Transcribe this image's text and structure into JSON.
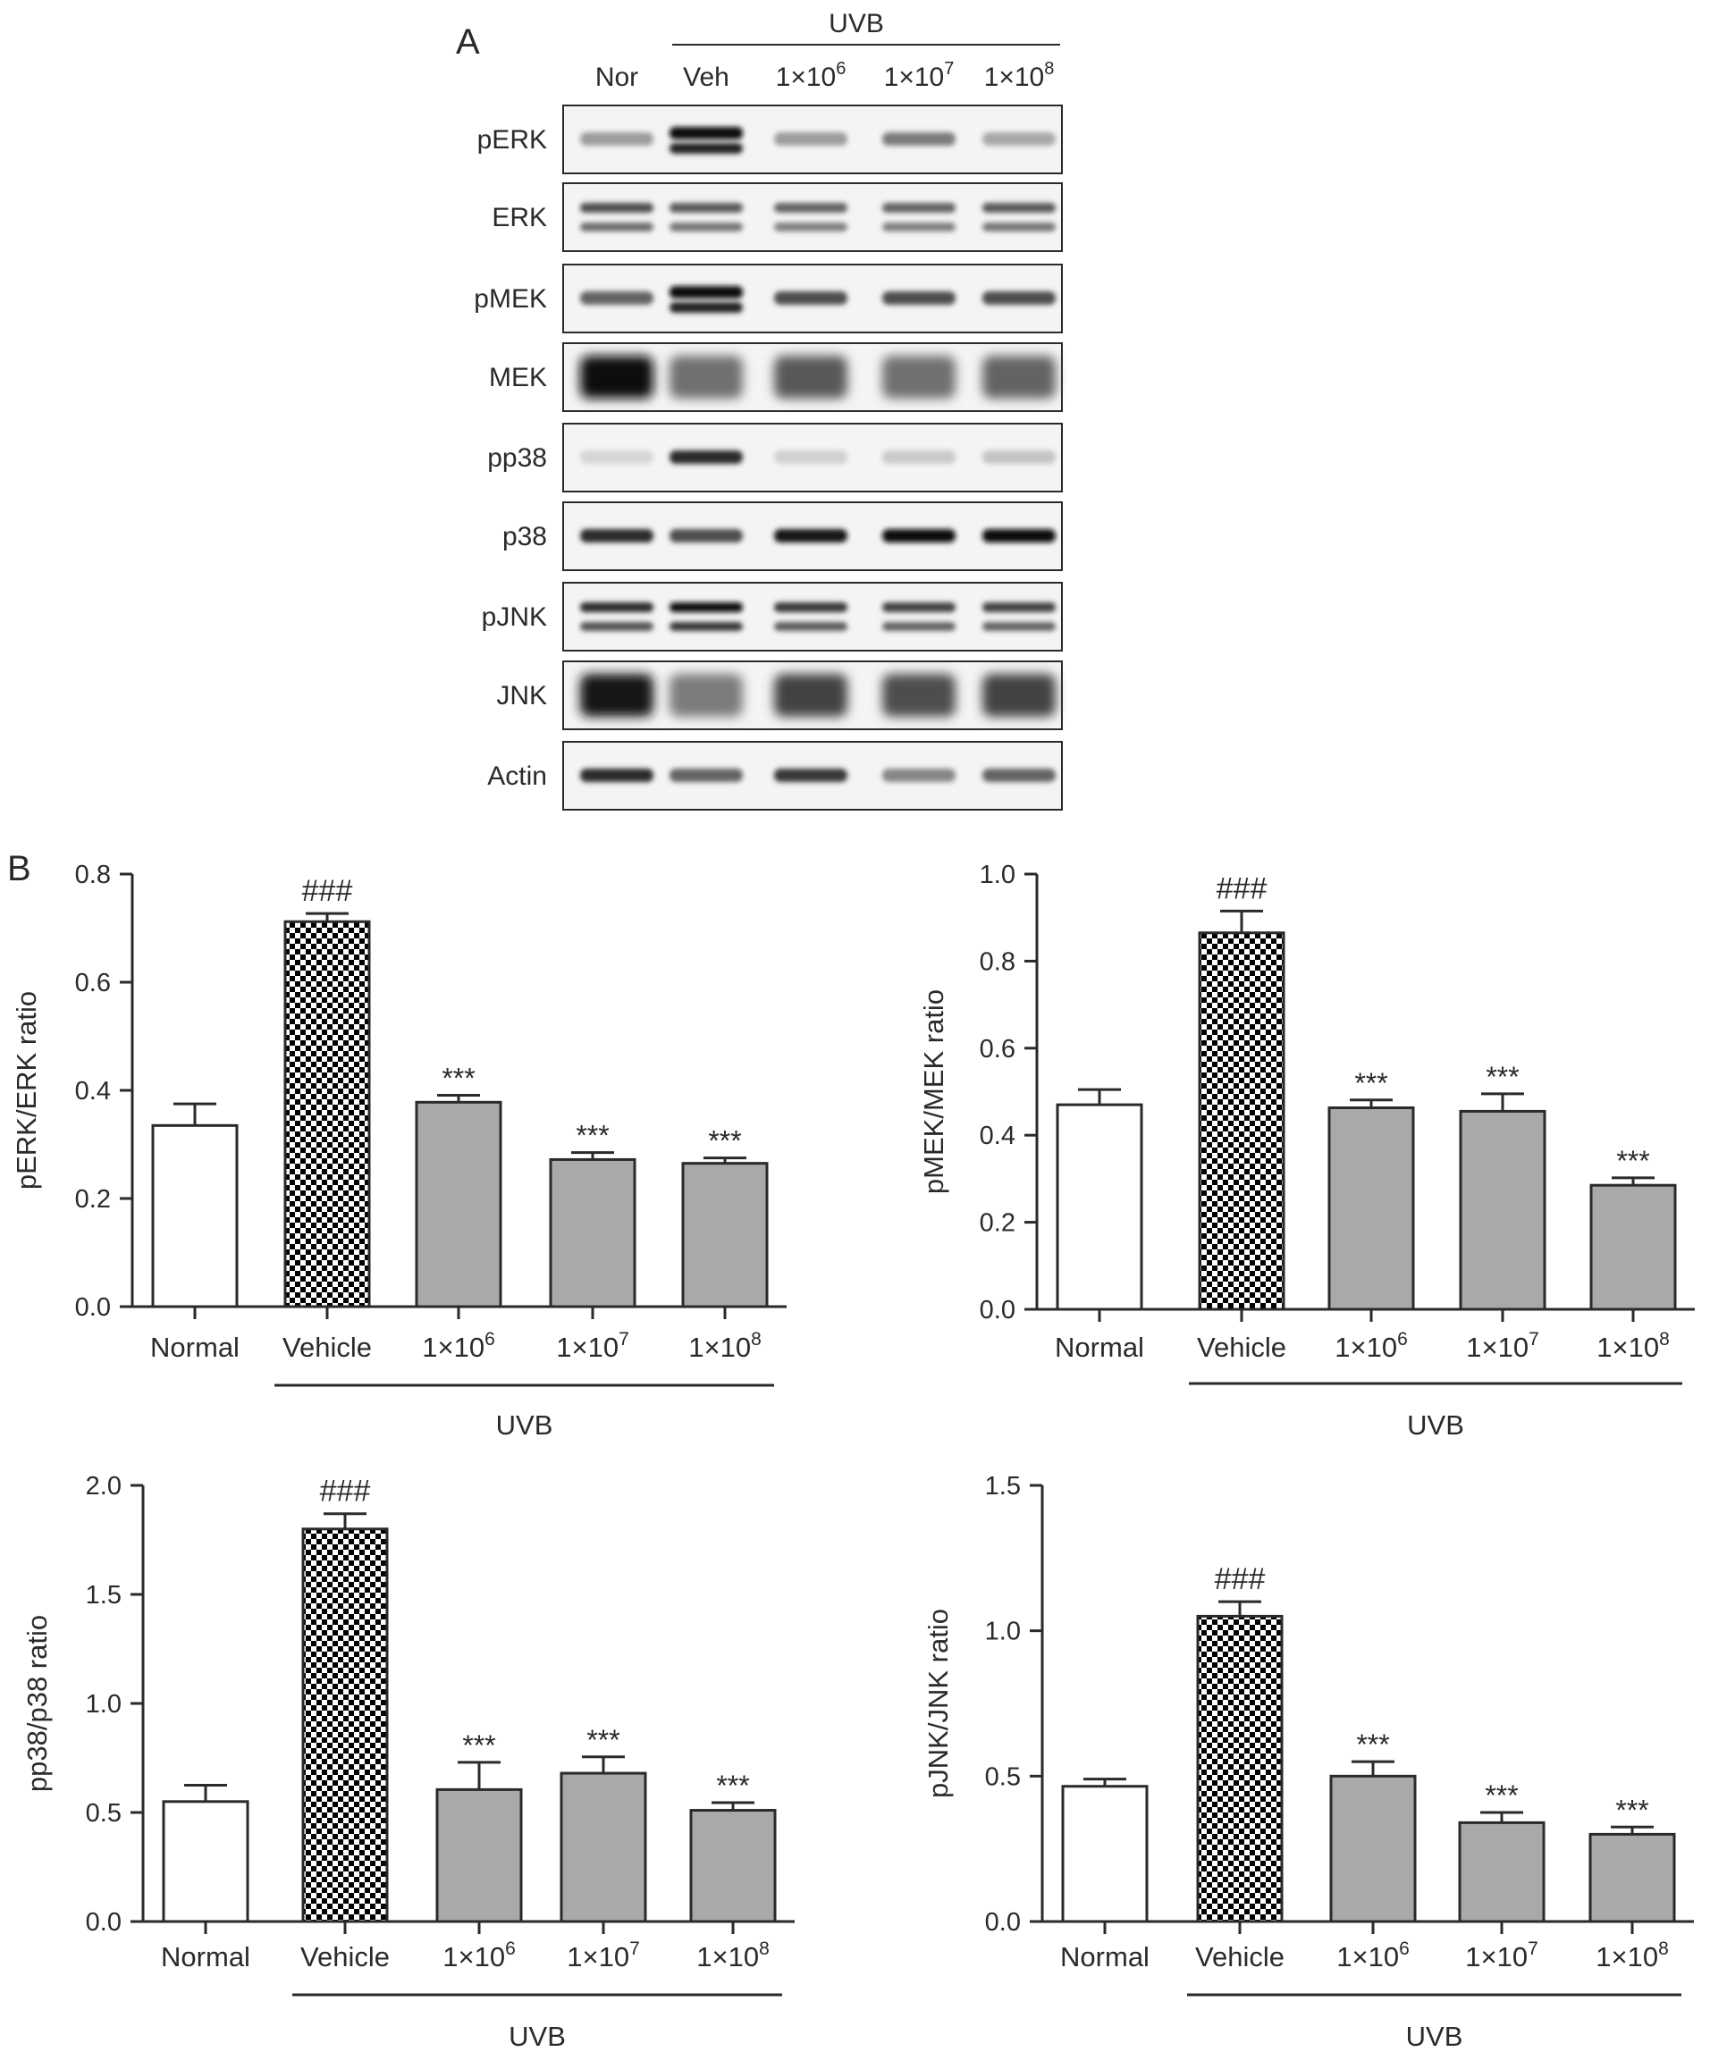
{
  "panel_a": {
    "label": "A",
    "group_label": "UVB",
    "lanes": [
      {
        "base": "Nor",
        "exp": ""
      },
      {
        "base": "Veh",
        "exp": ""
      },
      {
        "base": "1×10",
        "exp": "6"
      },
      {
        "base": "1×10",
        "exp": "7"
      },
      {
        "base": "1×10",
        "exp": "8"
      }
    ],
    "blots": [
      {
        "name": "pERK",
        "intensity": [
          0.35,
          1.0,
          0.35,
          0.5,
          0.3
        ],
        "bands": 1,
        "dark_doublet_lane": 1
      },
      {
        "name": "ERK",
        "intensity": [
          0.7,
          0.65,
          0.6,
          0.6,
          0.65
        ],
        "bands": 2
      },
      {
        "name": "pMEK",
        "intensity": [
          0.6,
          1.0,
          0.7,
          0.7,
          0.7
        ],
        "bands": 1,
        "dark_doublet_lane": 1
      },
      {
        "name": "MEK",
        "intensity": [
          1.0,
          0.55,
          0.65,
          0.55,
          0.6
        ],
        "bands": 1,
        "smear": true
      },
      {
        "name": "pp38",
        "intensity": [
          0.1,
          0.85,
          0.12,
          0.15,
          0.18
        ],
        "bands": 1
      },
      {
        "name": "p38",
        "intensity": [
          0.85,
          0.7,
          0.95,
          1.0,
          1.0
        ],
        "bands": 1
      },
      {
        "name": "pJNK",
        "intensity": [
          0.85,
          1.0,
          0.8,
          0.75,
          0.75
        ],
        "bands": 2
      },
      {
        "name": "JNK",
        "intensity": [
          0.95,
          0.5,
          0.75,
          0.7,
          0.75
        ],
        "bands": 1,
        "smear": true
      },
      {
        "name": "Actin",
        "intensity": [
          0.85,
          0.6,
          0.8,
          0.45,
          0.6
        ],
        "bands": 1
      }
    ]
  },
  "panel_b_label": "B",
  "colors": {
    "normal_fill": "#ffffff",
    "treatment_fill": "#a9a9a9",
    "pattern_dark": "#000000",
    "pattern_light": "#ffffff",
    "axis": "#2a2a2a"
  },
  "chart_data": [
    {
      "type": "bar",
      "ylabel": "pERK/ERK ratio",
      "ylim": [
        0,
        0.8
      ],
      "yticks": [
        "0.0",
        "0.2",
        "0.4",
        "0.6",
        "0.8"
      ],
      "categories": [
        {
          "base": "Normal",
          "exp": ""
        },
        {
          "base": "Vehicle",
          "exp": ""
        },
        {
          "base": "1×10",
          "exp": "6"
        },
        {
          "base": "1×10",
          "exp": "7"
        },
        {
          "base": "1×10",
          "exp": "8"
        }
      ],
      "values": [
        0.335,
        0.712,
        0.378,
        0.272,
        0.265
      ],
      "errors": [
        0.04,
        0.015,
        0.013,
        0.013,
        0.01
      ],
      "annotations": [
        "",
        "###",
        "***",
        "***",
        "***"
      ],
      "fills": [
        "normal",
        "checker",
        "treatment",
        "treatment",
        "treatment"
      ],
      "group_label": "UVB",
      "group_span": [
        1,
        4
      ]
    },
    {
      "type": "bar",
      "ylabel": "pMEK/MEK ratio",
      "ylim": [
        0,
        1.0
      ],
      "yticks": [
        "0.0",
        "0.2",
        "0.4",
        "0.6",
        "0.8",
        "1.0"
      ],
      "categories": [
        {
          "base": "Normal",
          "exp": ""
        },
        {
          "base": "Vehicle",
          "exp": ""
        },
        {
          "base": "1×10",
          "exp": "6"
        },
        {
          "base": "1×10",
          "exp": "7"
        },
        {
          "base": "1×10",
          "exp": "8"
        }
      ],
      "values": [
        0.47,
        0.865,
        0.463,
        0.455,
        0.285
      ],
      "errors": [
        0.035,
        0.05,
        0.018,
        0.04,
        0.017
      ],
      "annotations": [
        "",
        "###",
        "***",
        "***",
        "***"
      ],
      "fills": [
        "normal",
        "checker",
        "treatment",
        "treatment",
        "treatment"
      ],
      "group_label": "UVB",
      "group_span": [
        1,
        4
      ]
    },
    {
      "type": "bar",
      "ylabel": "pp38/p38 ratio",
      "ylim": [
        0,
        2.0
      ],
      "yticks": [
        "0.0",
        "0.5",
        "1.0",
        "1.5",
        "2.0"
      ],
      "categories": [
        {
          "base": "Normal",
          "exp": ""
        },
        {
          "base": "Vehicle",
          "exp": ""
        },
        {
          "base": "1×10",
          "exp": "6"
        },
        {
          "base": "1×10",
          "exp": "7"
        },
        {
          "base": "1×10",
          "exp": "8"
        }
      ],
      "values": [
        0.55,
        1.8,
        0.605,
        0.68,
        0.51
      ],
      "errors": [
        0.075,
        0.07,
        0.125,
        0.075,
        0.035
      ],
      "annotations": [
        "",
        "###",
        "***",
        "***",
        "***"
      ],
      "fills": [
        "normal",
        "checker",
        "treatment",
        "treatment",
        "treatment"
      ],
      "group_label": "UVB",
      "group_span": [
        1,
        4
      ]
    },
    {
      "type": "bar",
      "ylabel": "pJNK/JNK ratio",
      "ylim": [
        0,
        1.5
      ],
      "yticks": [
        "0.0",
        "0.5",
        "1.0",
        "1.5"
      ],
      "categories": [
        {
          "base": "Normal",
          "exp": ""
        },
        {
          "base": "Vehicle",
          "exp": ""
        },
        {
          "base": "1×10",
          "exp": "6"
        },
        {
          "base": "1×10",
          "exp": "7"
        },
        {
          "base": "1×10",
          "exp": "8"
        }
      ],
      "values": [
        0.465,
        1.05,
        0.5,
        0.34,
        0.3
      ],
      "errors": [
        0.025,
        0.05,
        0.05,
        0.035,
        0.025
      ],
      "annotations": [
        "",
        "###",
        "***",
        "***",
        "***"
      ],
      "fills": [
        "normal",
        "checker",
        "treatment",
        "treatment",
        "treatment"
      ],
      "group_label": "UVB",
      "group_span": [
        1,
        4
      ]
    }
  ]
}
